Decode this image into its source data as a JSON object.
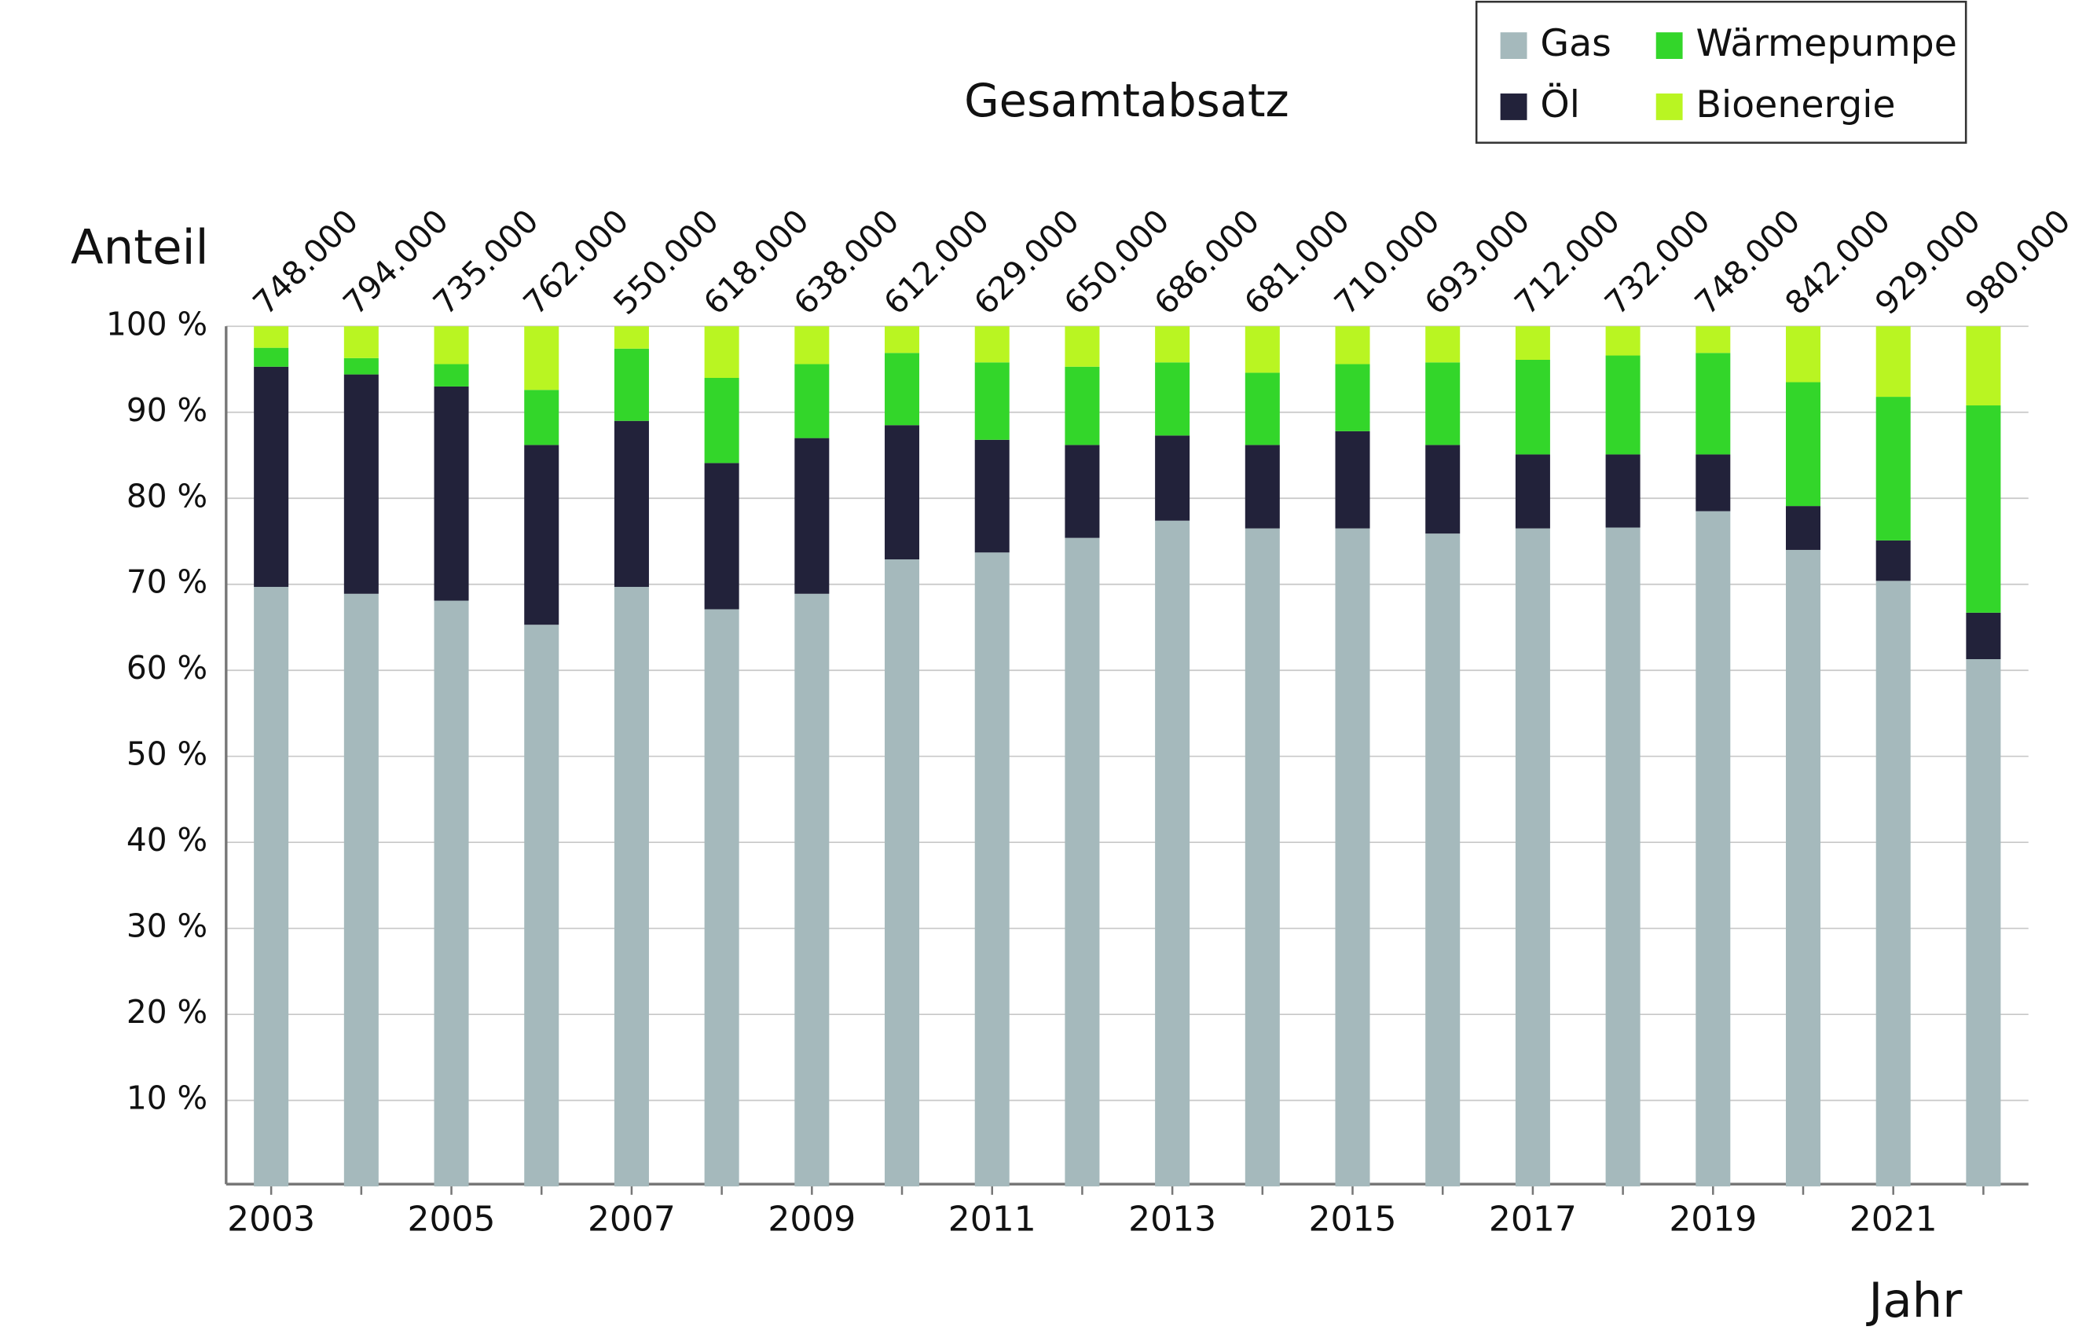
{
  "chart_data": {
    "type": "stacked_bar",
    "title": "Gesamtabsatz",
    "y_label": "Anteil",
    "x_label": "Jahr",
    "categories": [
      "2003",
      null,
      "2005",
      null,
      "2007",
      null,
      "2009",
      null,
      "2011",
      null,
      "2013",
      null,
      "2015",
      null,
      "2017",
      null,
      "2019",
      null,
      "2021",
      null
    ],
    "series": [
      {
        "name": "Gas",
        "color": "#a5b9bc",
        "values": [
          69.7,
          68.9,
          68.1,
          65.3,
          69.7,
          67.1,
          68.9,
          72.9,
          73.7,
          75.4,
          77.4,
          76.5,
          76.5,
          75.9,
          76.5,
          76.6,
          78.5,
          74.0,
          70.4,
          61.3
        ]
      },
      {
        "name": "Öl",
        "color": "#22223a",
        "values": [
          25.6,
          25.5,
          24.9,
          20.9,
          19.3,
          17.0,
          18.1,
          15.6,
          13.1,
          10.8,
          9.9,
          9.7,
          11.3,
          10.3,
          8.6,
          8.5,
          6.6,
          5.1,
          4.7,
          5.4
        ]
      },
      {
        "name": "Wärmepumpe",
        "color": "#33d62a",
        "values": [
          2.2,
          1.9,
          2.6,
          6.4,
          8.4,
          9.9,
          8.6,
          8.4,
          9.0,
          9.1,
          8.5,
          8.4,
          7.8,
          9.6,
          11.0,
          11.5,
          11.8,
          14.4,
          16.7,
          24.1
        ]
      },
      {
        "name": "Bioenergie",
        "color": "#b9f522",
        "values": [
          2.5,
          3.7,
          4.4,
          7.4,
          2.6,
          6.0,
          4.4,
          3.1,
          4.2,
          4.7,
          4.2,
          5.4,
          4.4,
          4.2,
          3.9,
          3.4,
          3.1,
          6.5,
          8.2,
          9.2
        ]
      }
    ],
    "totals": {
      "values": [
        748000,
        794000,
        735000,
        762000,
        550000,
        618000,
        638000,
        612000,
        629000,
        650000,
        686000,
        681000,
        710000,
        693000,
        712000,
        732000,
        748000,
        842000,
        929000,
        980000
      ],
      "value_labels": [
        "748.000",
        "794.000",
        "735.000",
        "762.000",
        "550.000",
        "618.000",
        "638.000",
        "612.000",
        "629.000",
        "650.000",
        "686.000",
        "681.000",
        "710.000",
        "693.000",
        "712.000",
        "732.000",
        "748.000",
        "842.000",
        "929.000",
        "980.000"
      ]
    },
    "ylim": [
      0,
      100
    ],
    "yticks": [
      {
        "value": 10,
        "label": "10 %"
      },
      {
        "value": 20,
        "label": "20 %"
      },
      {
        "value": 30,
        "label": "30 %"
      },
      {
        "value": 40,
        "label": "40 %"
      },
      {
        "value": 50,
        "label": "50 %"
      },
      {
        "value": 60,
        "label": "60 %"
      },
      {
        "value": 70,
        "label": "70 %"
      },
      {
        "value": 80,
        "label": "80 %"
      },
      {
        "value": 90,
        "label": "90 %"
      },
      {
        "value": 100,
        "label": "100 %"
      }
    ],
    "grid": true,
    "legend": "top-right"
  }
}
